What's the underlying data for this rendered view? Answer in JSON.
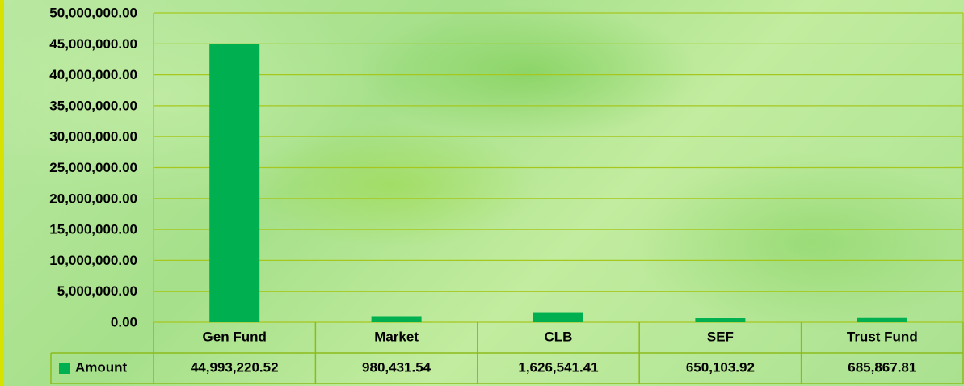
{
  "chart_data": {
    "type": "bar",
    "categories": [
      "Gen Fund",
      "Market",
      "CLB",
      "SEF",
      "Trust Fund"
    ],
    "series": [
      {
        "name": "Amount",
        "color": "#00b050",
        "values": [
          44993220.52,
          980431.54,
          1626541.41,
          650103.92,
          685867.81
        ],
        "value_labels": [
          "44,993,220.52",
          "980,431.54",
          "1,626,541.41",
          "650,103.92",
          "685,867.81"
        ]
      }
    ],
    "ylim": [
      0,
      50000000
    ],
    "yticks": [
      {
        "value": 0,
        "label": "0.00"
      },
      {
        "value": 5000000,
        "label": "5,000,000.00"
      },
      {
        "value": 10000000,
        "label": "10,000,000.00"
      },
      {
        "value": 15000000,
        "label": "15,000,000.00"
      },
      {
        "value": 20000000,
        "label": "20,000,000.00"
      },
      {
        "value": 25000000,
        "label": "25,000,000.00"
      },
      {
        "value": 30000000,
        "label": "30,000,000.00"
      },
      {
        "value": 35000000,
        "label": "35,000,000.00"
      },
      {
        "value": 40000000,
        "label": "40,000,000.00"
      },
      {
        "value": 45000000,
        "label": "45,000,000.00"
      },
      {
        "value": 50000000,
        "label": "50,000,000.00"
      }
    ],
    "grid": true
  }
}
